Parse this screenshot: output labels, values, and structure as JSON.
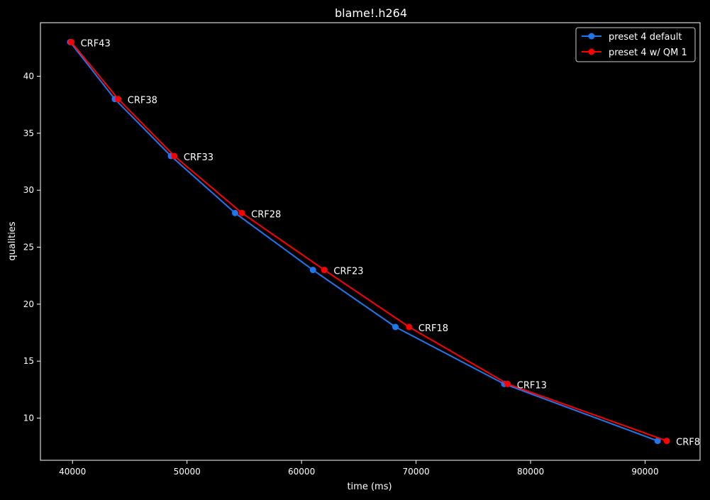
{
  "chart_data": {
    "type": "line",
    "title": "blame!.h264",
    "xlabel": "time (ms)",
    "ylabel": "qualities",
    "xlim": [
      37200,
      94800
    ],
    "ylim": [
      6.3,
      44.7
    ],
    "x_ticks": [
      40000,
      50000,
      60000,
      70000,
      80000,
      90000
    ],
    "y_ticks": [
      10,
      15,
      20,
      25,
      30,
      35,
      40
    ],
    "grid": false,
    "legend_position": "top-right",
    "series": [
      {
        "name": "preset 4 default",
        "color": "#1f77f0",
        "x": [
          39800,
          43700,
          48600,
          54200,
          61000,
          68200,
          77700,
          91100
        ],
        "y": [
          43,
          38,
          33,
          28,
          23,
          18,
          13,
          8
        ]
      },
      {
        "name": "preset 4 w/ QM 1",
        "color": "#ff0000",
        "x": [
          39900,
          44000,
          48900,
          54800,
          62000,
          69400,
          78000,
          91900
        ],
        "y": [
          43,
          38,
          33,
          28,
          23,
          18,
          13,
          8
        ]
      }
    ],
    "annotations": [
      {
        "text": "CRF43",
        "x": 39900,
        "y": 43
      },
      {
        "text": "CRF38",
        "x": 44000,
        "y": 38
      },
      {
        "text": "CRF33",
        "x": 48900,
        "y": 33
      },
      {
        "text": "CRF28",
        "x": 54800,
        "y": 28
      },
      {
        "text": "CRF23",
        "x": 62000,
        "y": 23
      },
      {
        "text": "CRF18",
        "x": 69400,
        "y": 18
      },
      {
        "text": "CRF13",
        "x": 78000,
        "y": 13
      },
      {
        "text": "CRF8",
        "x": 91900,
        "y": 8
      }
    ]
  }
}
